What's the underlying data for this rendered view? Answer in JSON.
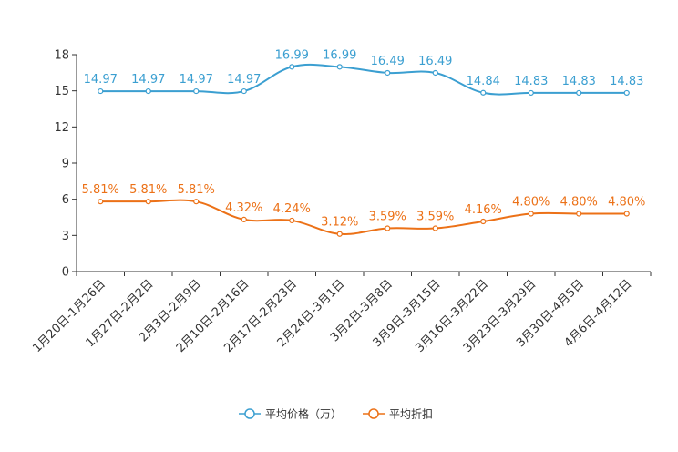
{
  "chart_data": {
    "type": "line",
    "title": "",
    "xlabel": "",
    "ylabel": "",
    "ylim": [
      0,
      18
    ],
    "yticks": [
      0,
      3,
      6,
      9,
      12,
      15,
      18
    ],
    "categories": [
      "1月20日-1月26日",
      "1月27日-2月2日",
      "2月3日-2月9日",
      "2月10日-2月16日",
      "2月17日-2月23日",
      "2月24日-3月1日",
      "3月2日-3月8日",
      "3月9日-3月15日",
      "3月16日-3月22日",
      "3月23日-3月29日",
      "3月30日-4月5日",
      "4月6日-4月12日"
    ],
    "series": [
      {
        "name": "平均价格（万）",
        "color": "#3b9fd1",
        "values": [
          14.97,
          14.97,
          14.97,
          14.97,
          16.99,
          16.99,
          16.49,
          16.49,
          14.84,
          14.83,
          14.83,
          14.83
        ],
        "labels": [
          "14.97",
          "14.97",
          "14.97",
          "14.97",
          "16.99",
          "16.99",
          "16.49",
          "16.49",
          "14.84",
          "14.83",
          "14.83",
          "14.83"
        ]
      },
      {
        "name": "平均折扣",
        "color": "#ec7117",
        "values": [
          5.81,
          5.81,
          5.81,
          4.32,
          4.24,
          3.12,
          3.59,
          3.59,
          4.16,
          4.8,
          4.8,
          4.8
        ],
        "labels": [
          "5.81%",
          "5.81%",
          "5.81%",
          "4.32%",
          "4.24%",
          "3.12%",
          "3.59%",
          "3.59%",
          "4.16%",
          "4.80%",
          "4.80%",
          "4.80%"
        ]
      }
    ],
    "legend_position": "bottom-center",
    "grid": false
  }
}
